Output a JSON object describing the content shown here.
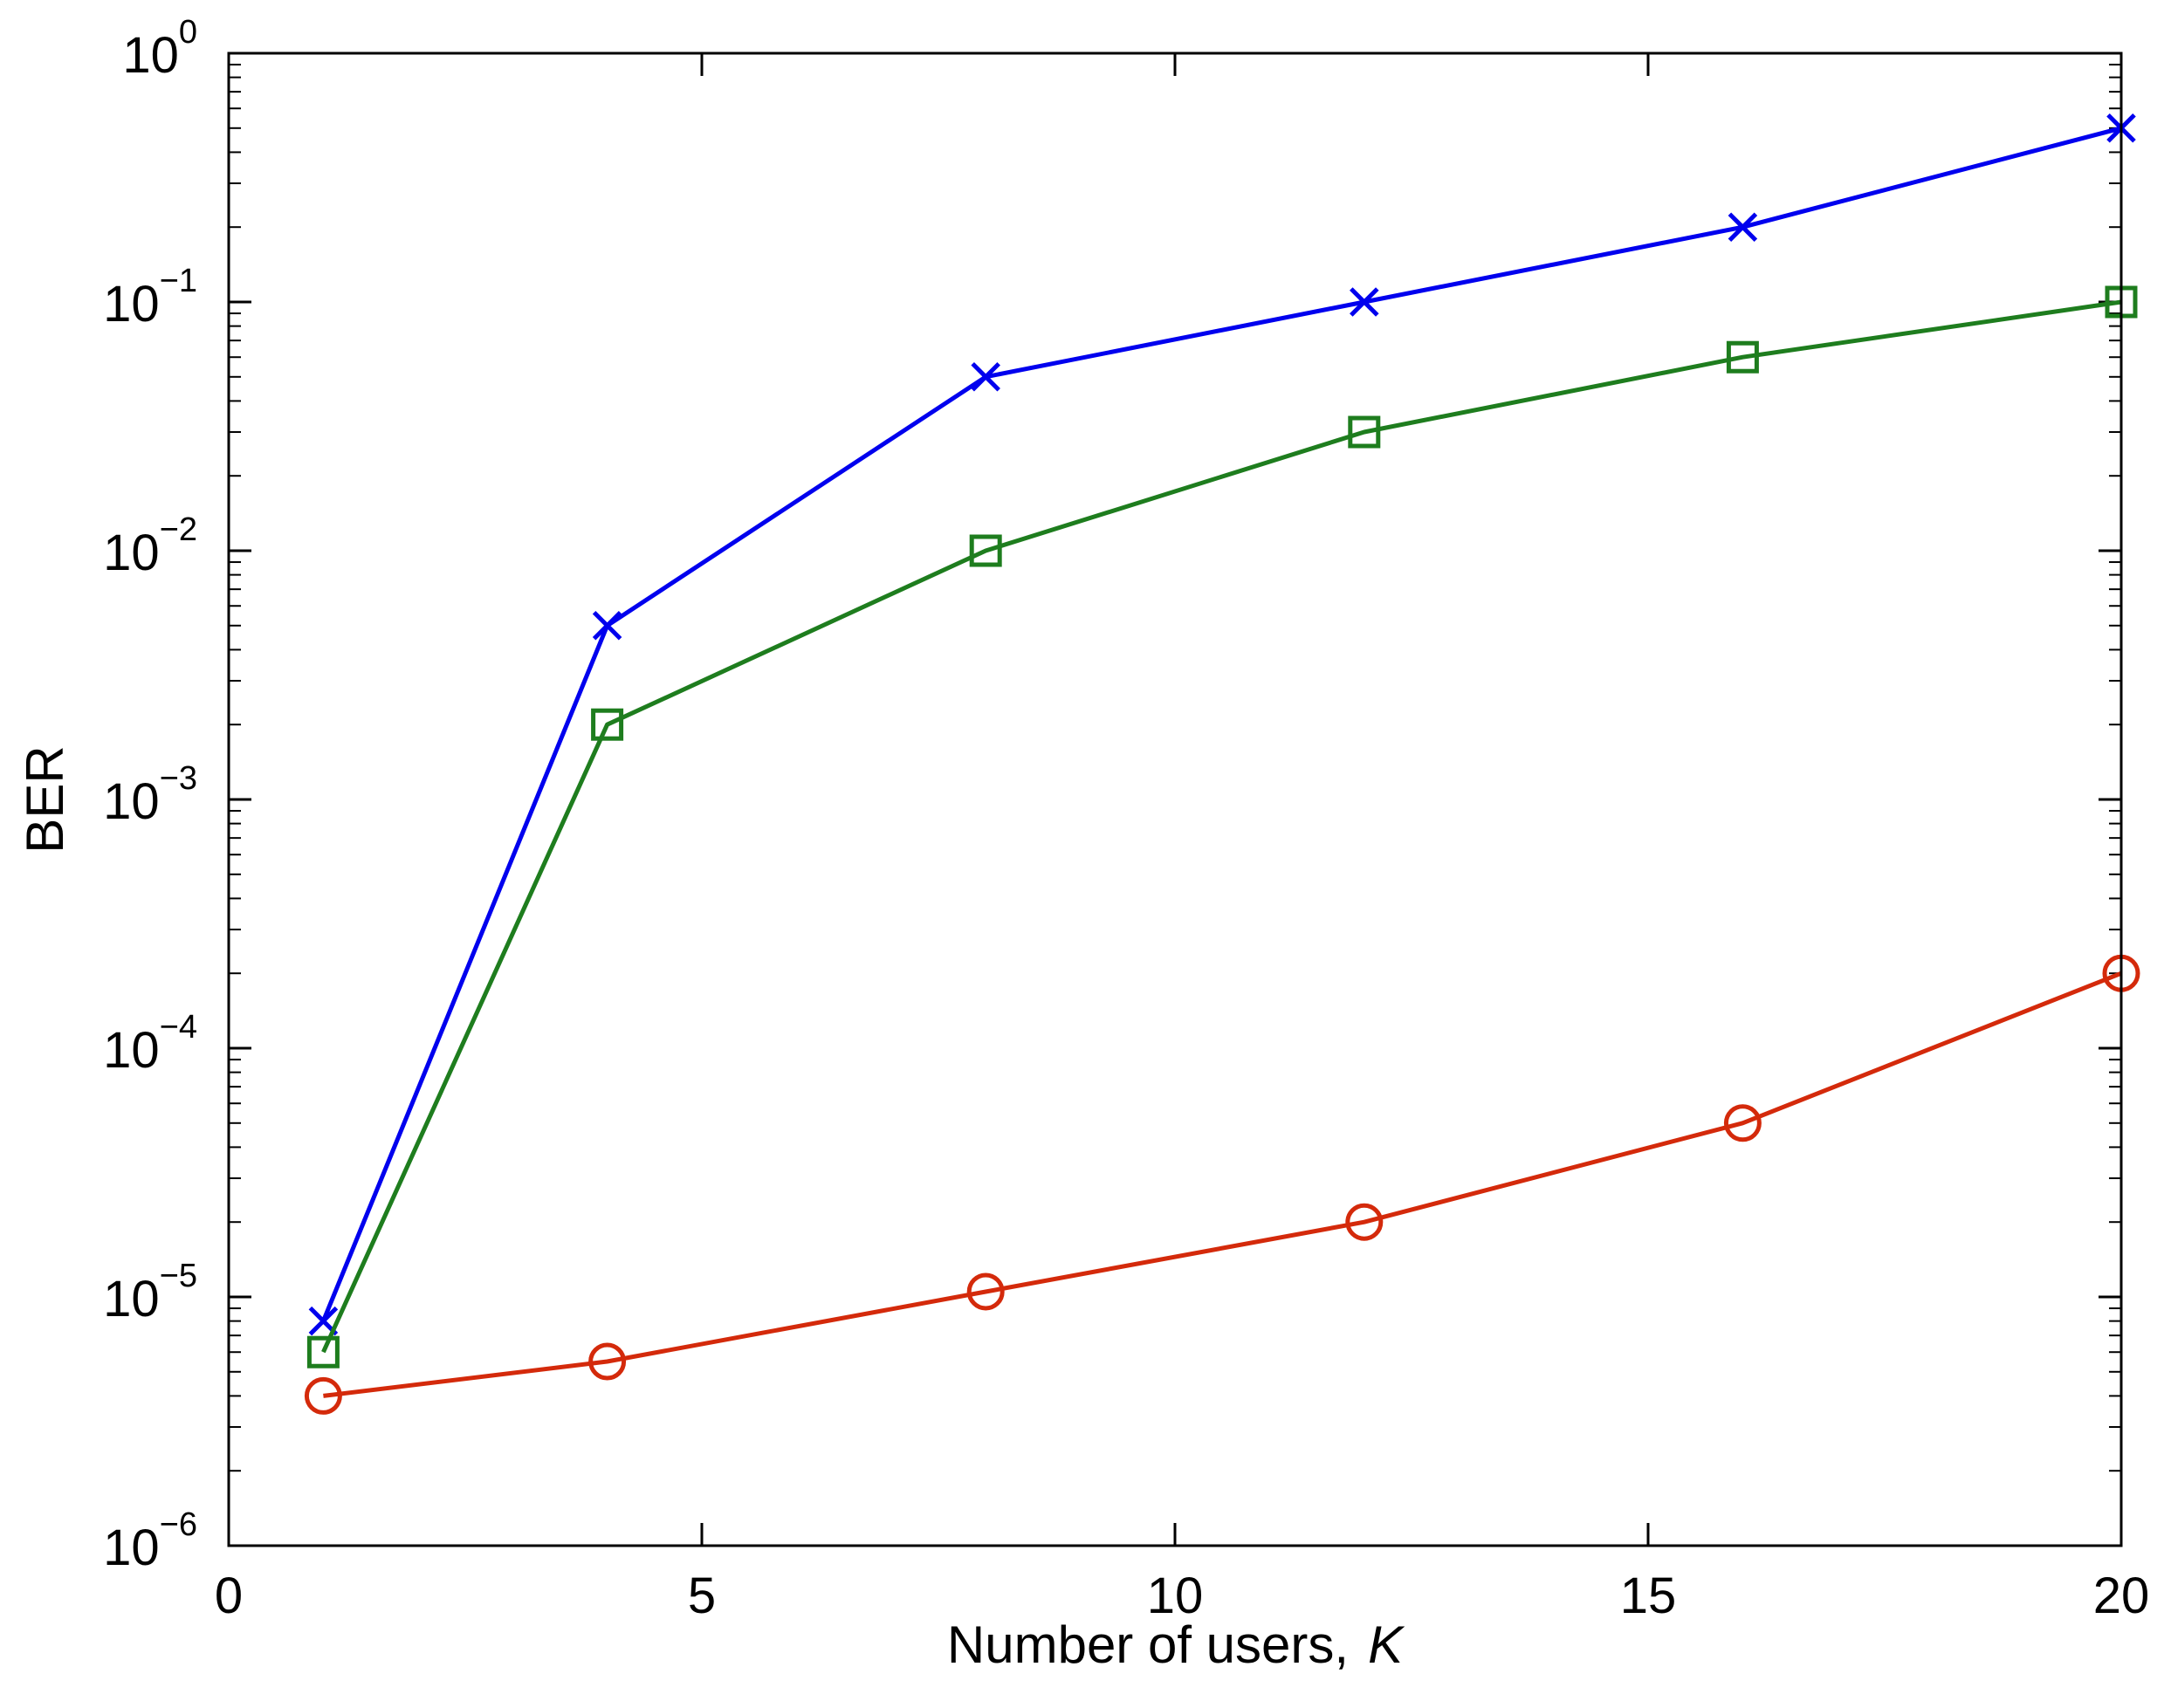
{
  "chart_data": {
    "type": "line",
    "title": "",
    "xlabel": "Number of users,",
    "xlabel_var": "K",
    "ylabel": "BER",
    "xlim": [
      0,
      20
    ],
    "ylim": [
      1e-06,
      1
    ],
    "yscale": "log",
    "grid": false,
    "legend": "none",
    "x_ticks": [
      "0",
      "5",
      "10",
      "15",
      "20"
    ],
    "y_ticks": [
      {
        "base": "10",
        "exp": "0"
      },
      {
        "base": "10",
        "exp": "−1"
      },
      {
        "base": "10",
        "exp": "−2"
      },
      {
        "base": "10",
        "exp": "−3"
      },
      {
        "base": "10",
        "exp": "−4"
      },
      {
        "base": "10",
        "exp": "−5"
      },
      {
        "base": "10",
        "exp": "−6"
      }
    ],
    "x": [
      1,
      4,
      8,
      12,
      16,
      20
    ],
    "series": [
      {
        "marker": "x",
        "color": "#0000ee",
        "values": [
          8e-06,
          0.005,
          0.05,
          0.1,
          0.2,
          0.5
        ]
      },
      {
        "marker": "square",
        "color": "#1e7d1e",
        "values": [
          6e-06,
          0.002,
          0.01,
          0.03,
          0.06,
          0.1
        ]
      },
      {
        "marker": "circle",
        "color": "#d42a0b",
        "values": [
          4e-06,
          5.5e-06,
          1.05e-05,
          2e-05,
          5e-05,
          0.0002
        ]
      }
    ]
  }
}
